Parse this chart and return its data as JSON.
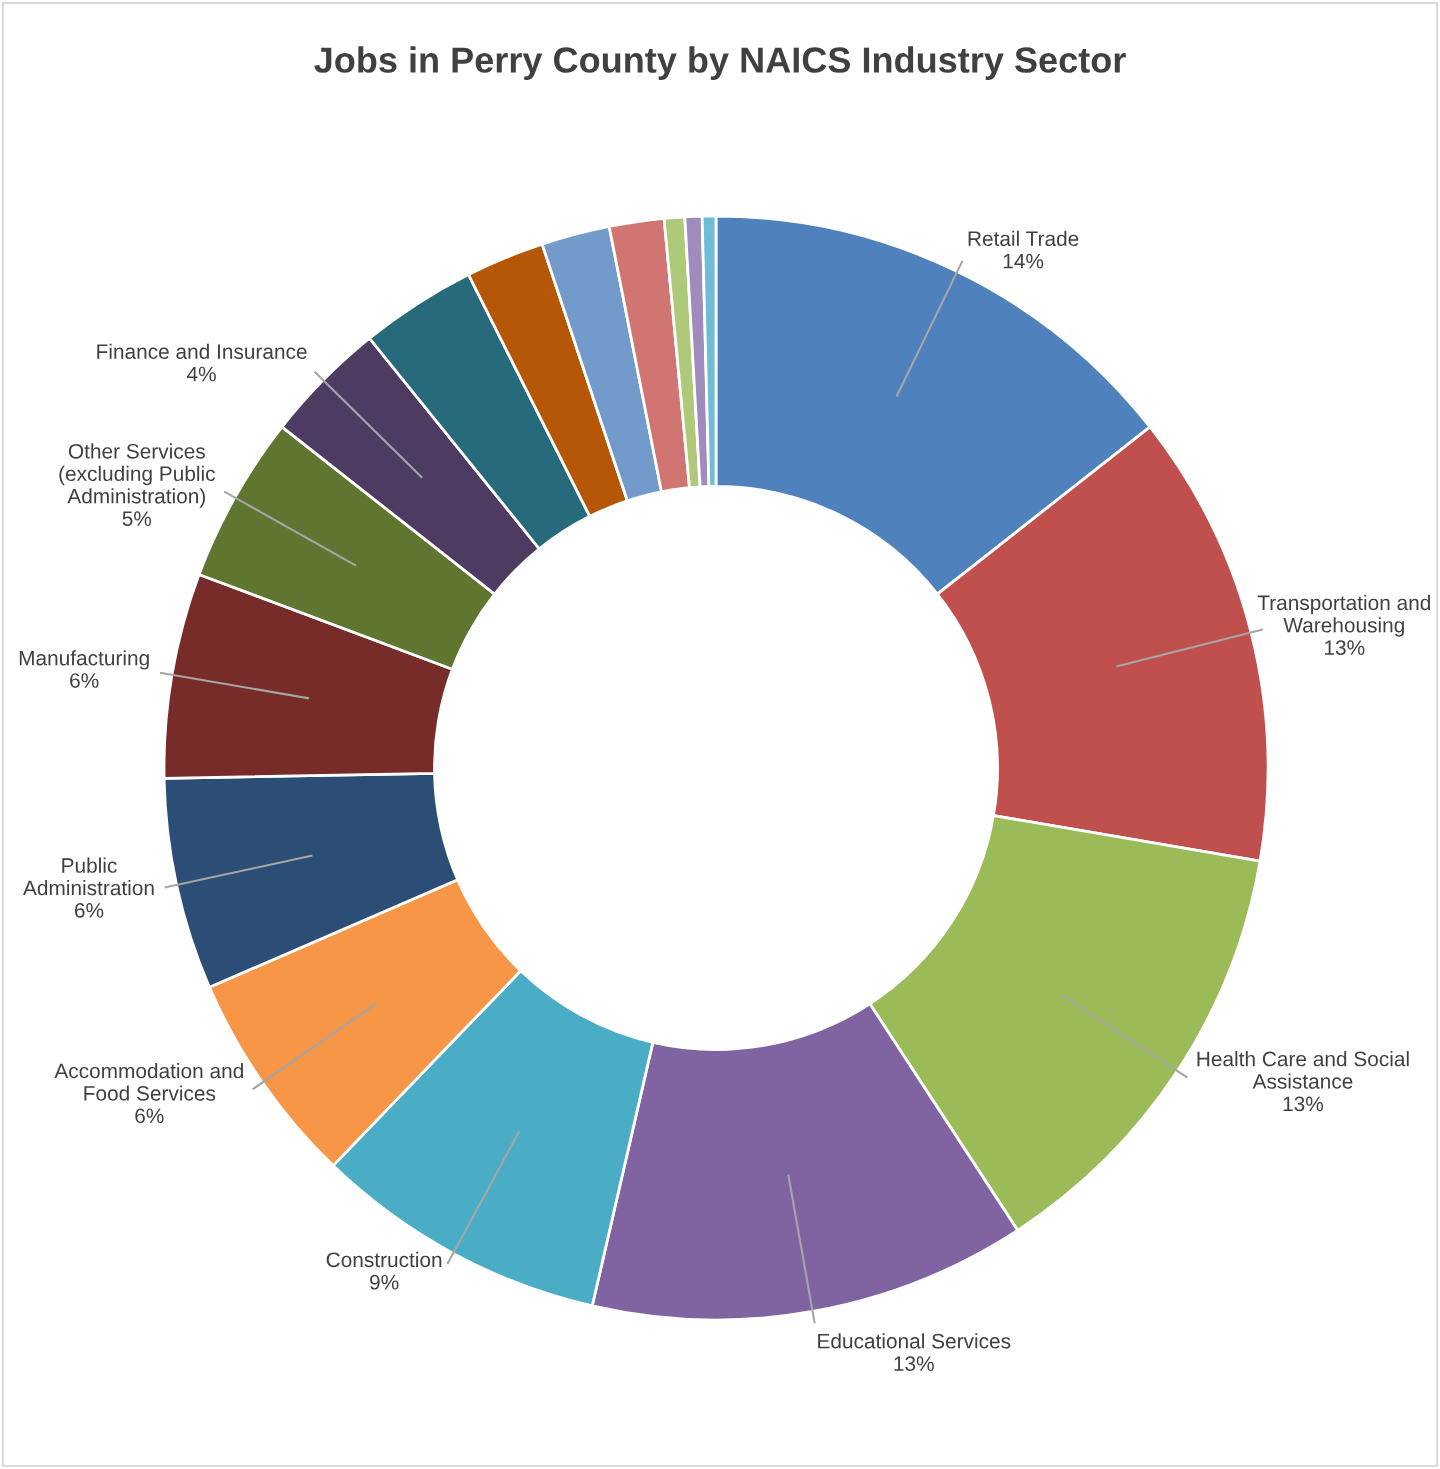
{
  "chart_data": {
    "type": "donut",
    "title": "Jobs in Perry County by NAICS Industry Sector",
    "categories": [
      "Retail Trade",
      "Transportation and\nWarehousing",
      "Health Care and Social\nAssistance",
      "Educational Services",
      "Construction",
      "Accommodation and\nFood Services",
      "Public\nAdministration",
      "Manufacturing",
      "Other Services\n(excluding Public\nAdministration)",
      "Finance and Insurance",
      null,
      null,
      null,
      null,
      null,
      null,
      null
    ],
    "values": [
      14.4,
      13.3,
      13.1,
      12.8,
      8.6,
      6.3,
      6.2,
      6.0,
      4.9,
      3.6,
      3.4,
      2.3,
      2.0,
      1.6,
      0.6,
      0.5,
      0.4
    ],
    "value_labels": [
      "14%",
      "13%",
      "13%",
      "13%",
      "9%",
      "6%",
      "6%",
      "6%",
      "5%",
      "4%",
      null,
      null,
      null,
      null,
      null,
      null,
      null
    ],
    "colors": [
      "#4f81bd",
      "#c0504d",
      "#9bbb59",
      "#8064a2",
      "#4bacc6",
      "#f79646",
      "#2c4d75",
      "#772c2a",
      "#5f7530",
      "#4d3b62",
      "#276a7c",
      "#b65708",
      "#729aca",
      "#d07572",
      "#afc97a",
      "#a08cbc",
      "#6fbdd4"
    ],
    "legend": false
  }
}
